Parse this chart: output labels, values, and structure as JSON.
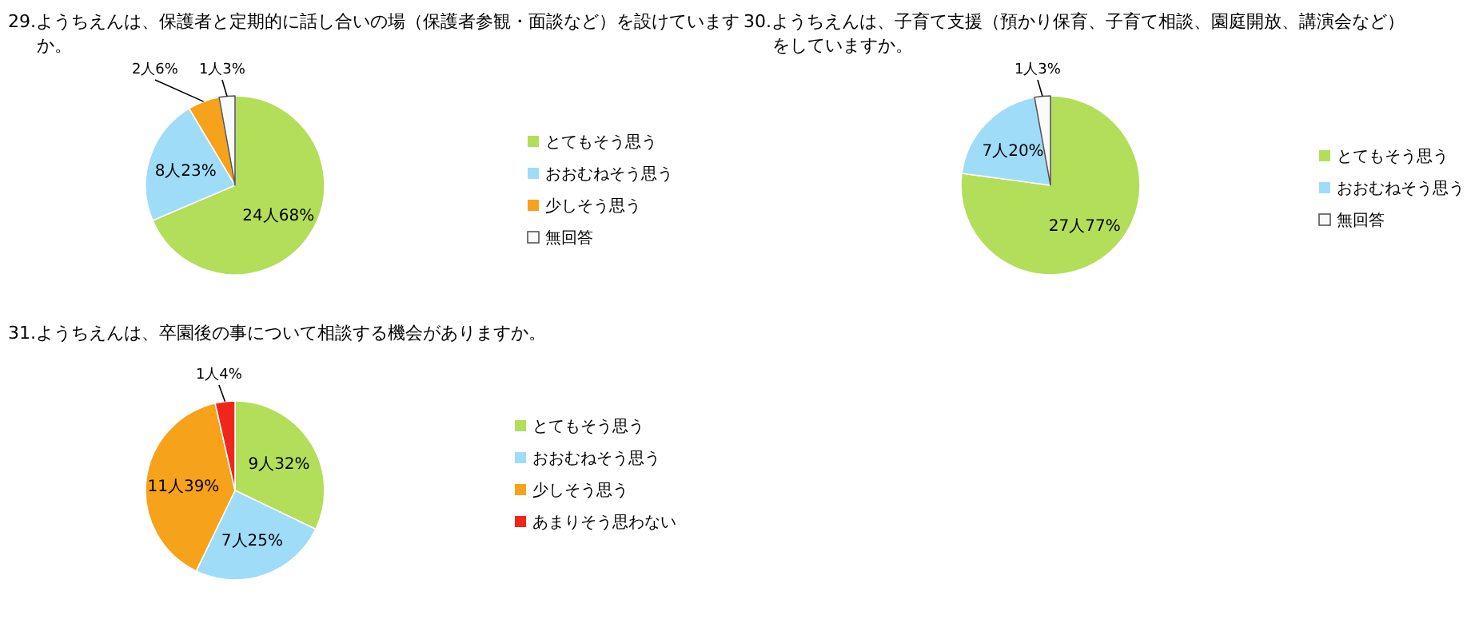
{
  "chart_data": [
    {
      "type": "pie",
      "title": "29.ようちえんは、保護者と定期的に話し合いの場（保護者参観・面談など）を設けていますか。",
      "categories": [
        "とてもそう思う",
        "おおむねそう思う",
        "少しそう思う",
        "無回答"
      ],
      "values": [
        24,
        8,
        2,
        1
      ],
      "value_labels": [
        "24人68%",
        "8人23%",
        "2人6%",
        "1人3%"
      ],
      "colors": [
        "#b3de5a",
        "#9fdcf8",
        "#f7a21b",
        "#fafafa"
      ],
      "legend": "right"
    },
    {
      "type": "pie",
      "title": "30.ようちえんは、子育て支援（預かり保育、子育て相談、園庭開放、講演会など）をしていますか。",
      "categories": [
        "とてもそう思う",
        "おおむねそう思う",
        "無回答"
      ],
      "values": [
        27,
        7,
        1
      ],
      "value_labels": [
        "27人77%",
        "7人20%",
        "1人3%"
      ],
      "colors": [
        "#b3de5a",
        "#9fdcf8",
        "#fafafa"
      ],
      "legend": "right"
    },
    {
      "type": "pie",
      "title": "31.ようちえんは、卒園後の事について相談する機会がありますか。",
      "categories": [
        "とてもそう思う",
        "おおむねそう思う",
        "少しそう思う",
        "あまりそう思わない"
      ],
      "values": [
        9,
        7,
        11,
        1
      ],
      "value_labels": [
        "9人32%",
        "7人25%",
        "11人39%",
        "1人4%"
      ],
      "colors": [
        "#b3de5a",
        "#9fdcf8",
        "#f7a21b",
        "#f0261b"
      ],
      "legend": "right"
    }
  ]
}
